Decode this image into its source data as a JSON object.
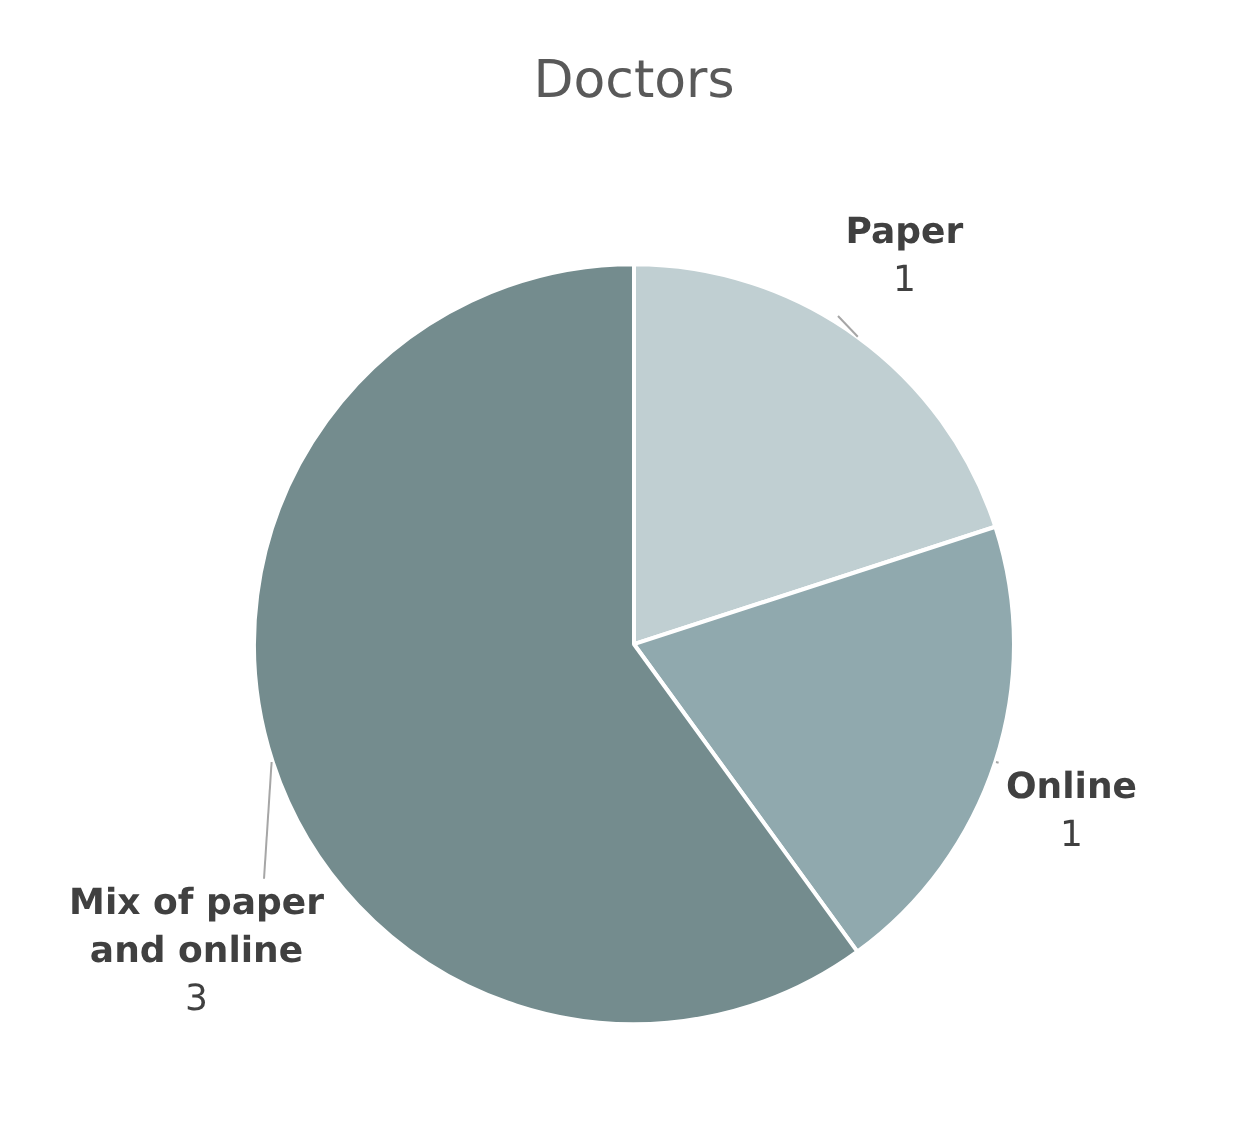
{
  "chart_data": {
    "type": "pie",
    "title": "Doctors",
    "categories": [
      "Paper",
      "Online",
      "Mix of paper and online"
    ],
    "values": [
      1,
      1,
      3
    ],
    "colors": [
      "#c0cfd2",
      "#90a9ae",
      "#748c8e"
    ],
    "data_labels": true,
    "legend": false
  }
}
